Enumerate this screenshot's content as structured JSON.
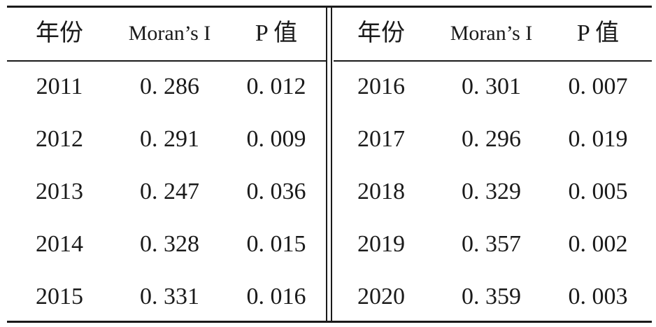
{
  "table": {
    "headers": [
      "年份",
      "Moran’s I",
      "P 值",
      "年份",
      "Moran’s I",
      "P 值"
    ],
    "rows": [
      [
        "2011",
        "0. 286",
        "0. 012",
        "2016",
        "0. 301",
        "0. 007"
      ],
      [
        "2012",
        "0. 291",
        "0. 009",
        "2017",
        "0. 296",
        "0. 019"
      ],
      [
        "2013",
        "0. 247",
        "0. 036",
        "2018",
        "0. 329",
        "0. 005"
      ],
      [
        "2014",
        "0. 328",
        "0. 015",
        "2019",
        "0. 357",
        "0. 002"
      ],
      [
        "2015",
        "0. 331",
        "0. 016",
        "2020",
        "0. 359",
        "0. 003"
      ]
    ]
  }
}
